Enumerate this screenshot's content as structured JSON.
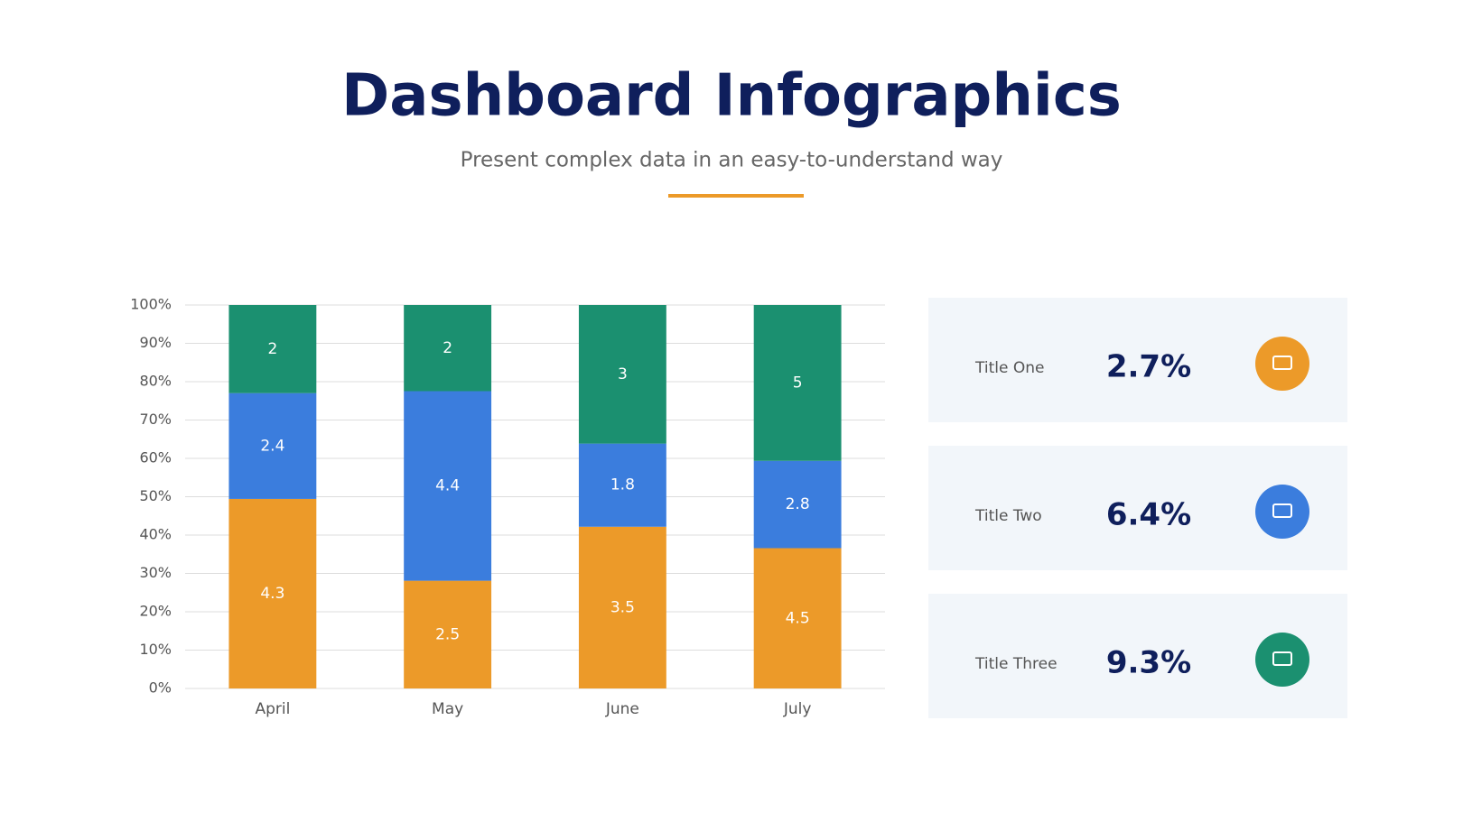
{
  "chart_data": {
    "type": "bar",
    "stacking": "percent",
    "title": "Dashboard Infographics",
    "subtitle": "Present complex data in an easy-to-understand way",
    "categories": [
      "April",
      "May",
      "June",
      "July"
    ],
    "series": [
      {
        "color": "#ec9a29",
        "values": [
          4.3,
          2.5,
          3.5,
          4.5
        ]
      },
      {
        "color": "#3b7ddd",
        "values": [
          2.4,
          4.4,
          1.8,
          2.8
        ]
      },
      {
        "color": "#1b9070",
        "values": [
          2,
          2,
          3,
          5
        ]
      }
    ],
    "ylim": [
      0,
      100
    ],
    "yticks": [
      {
        "value": 0,
        "label": "0%"
      },
      {
        "value": 10,
        "label": "10%"
      },
      {
        "value": 20,
        "label": "20%"
      },
      {
        "value": 30,
        "label": "30%"
      },
      {
        "value": 40,
        "label": "40%"
      },
      {
        "value": 50,
        "label": "50%"
      },
      {
        "value": 60,
        "label": "60%"
      },
      {
        "value": 70,
        "label": "70%"
      },
      {
        "value": 80,
        "label": "80%"
      },
      {
        "value": 90,
        "label": "90%"
      },
      {
        "value": 100,
        "label": "100%"
      }
    ],
    "grid": true
  },
  "cards": [
    {
      "title": "Title One",
      "value": "2.7%"
    },
    {
      "title": "Title Two",
      "value": "6.4%"
    },
    {
      "title": "Title Three",
      "value": "9.3%"
    }
  ]
}
